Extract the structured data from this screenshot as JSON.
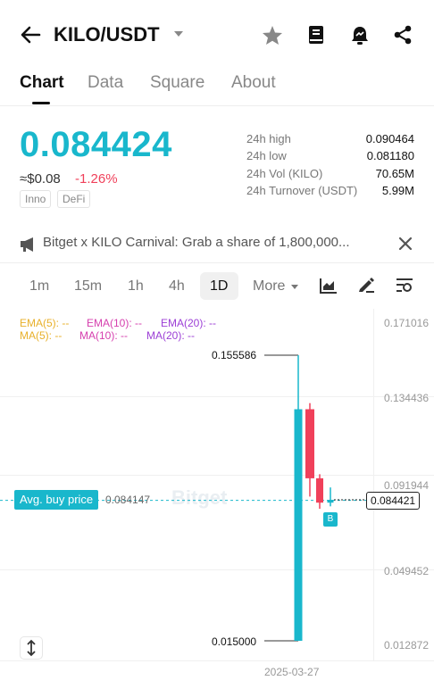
{
  "header": {
    "pair": "KILO/USDT",
    "icons": [
      "back-arrow-icon",
      "star-icon",
      "book-icon",
      "bell-icon",
      "share-icon"
    ]
  },
  "tabs": [
    {
      "label": "Chart",
      "active": true
    },
    {
      "label": "Data",
      "active": false
    },
    {
      "label": "Square",
      "active": false
    },
    {
      "label": "About",
      "active": false
    }
  ],
  "ticker": {
    "price": "0.084424",
    "usd": "≈$0.08",
    "change": "-1.26%",
    "tags": [
      "Inno",
      "DeFi"
    ],
    "stats": [
      {
        "label": "24h high",
        "value": "0.090464"
      },
      {
        "label": "24h low",
        "value": "0.081180"
      },
      {
        "label": "24h Vol (KILO)",
        "value": "70.65M"
      },
      {
        "label": "24h Turnover (USDT)",
        "value": "5.99M"
      }
    ]
  },
  "banner": {
    "text": "Bitget x KILO Carnival: Grab a share of 1,800,000..."
  },
  "intervals": {
    "items": [
      "1m",
      "15m",
      "1h",
      "4h",
      "1D",
      "More"
    ],
    "active": "1D"
  },
  "indicators": {
    "ema5": "EMA(5): --",
    "ema10": "EMA(10): --",
    "ema20": "EMA(20): --",
    "ma5": "MA(5): --",
    "ma10": "MA(10): --",
    "ma20": "MA(20): --"
  },
  "chart_data": {
    "type": "candlestick",
    "y_ticks": [
      "0.171016",
      "0.134436",
      "0.091944",
      "0.049452",
      "0.012872"
    ],
    "ylim": [
      0.012872,
      0.171016
    ],
    "high_label": "0.155586",
    "low_label": "0.015000",
    "avg_buy_label": "Avg. buy price",
    "avg_buy_value": "0.084147",
    "current_label": "0.084421",
    "current_value": 0.084421,
    "x_label": "2025-03-27",
    "candles": [
      {
        "open": 0.015,
        "close": 0.129,
        "high": 0.155586,
        "low": 0.015,
        "dir": "up"
      },
      {
        "open": 0.129,
        "close": 0.095,
        "high": 0.132,
        "low": 0.086,
        "dir": "down"
      },
      {
        "open": 0.095,
        "close": 0.083,
        "high": 0.097,
        "low": 0.08,
        "dir": "down"
      },
      {
        "open": 0.083,
        "close": 0.0844,
        "high": 0.0905,
        "low": 0.0812,
        "dir": "up"
      }
    ],
    "trade_marker": "B"
  },
  "watermark": "Bitget",
  "colors": {
    "accent": "#19b7cc",
    "down": "#f0405a",
    "ema5": "#e8b02a",
    "ema10": "#d63fae",
    "ema20": "#9c3fd6"
  }
}
